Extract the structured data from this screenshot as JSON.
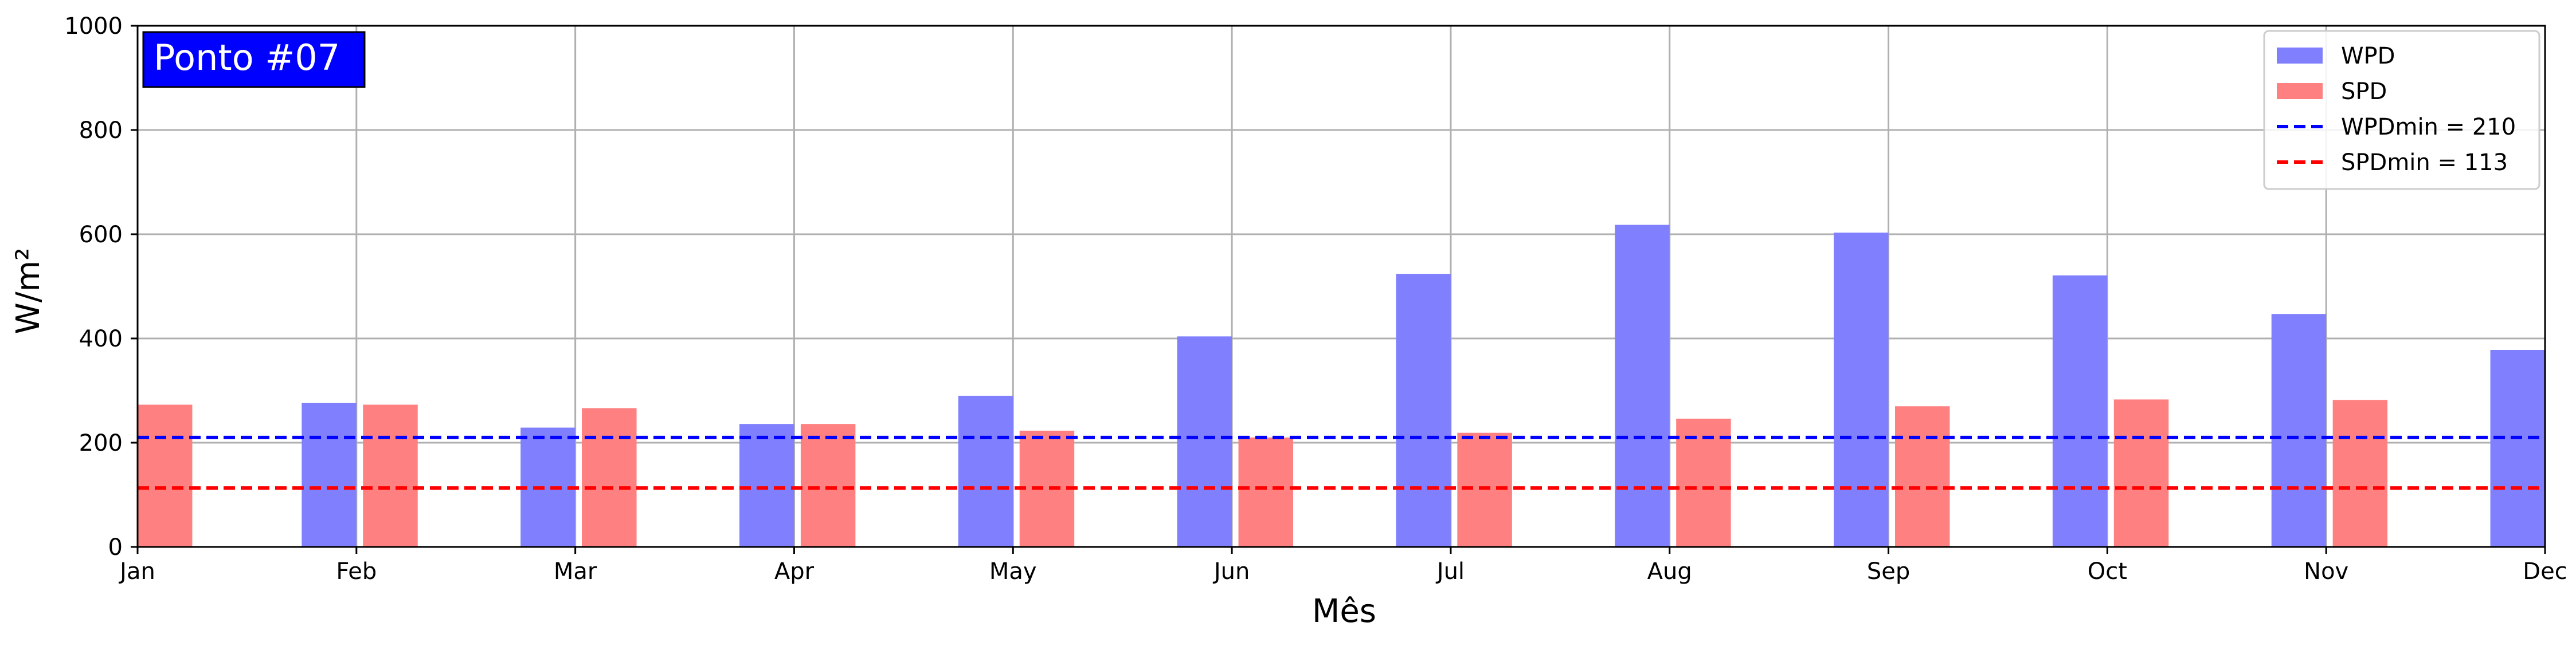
{
  "chart_data": {
    "type": "bar",
    "title_box": "Ponto #07",
    "xlabel": "Mês",
    "ylabel": "W/m²",
    "ylim": [
      0,
      1000
    ],
    "yticks": [
      0,
      200,
      400,
      600,
      800,
      1000
    ],
    "categories": [
      "Jan",
      "Feb",
      "Mar",
      "Apr",
      "May",
      "Jun",
      "Jul",
      "Aug",
      "Sep",
      "Oct",
      "Nov",
      "Dec"
    ],
    "grid": true,
    "legend_position": "top-right",
    "series": [
      {
        "name": "WPD",
        "color": "#8080ff",
        "values": [
          null,
          276,
          229,
          236,
          290,
          404,
          524,
          618,
          603,
          521,
          447,
          378
        ]
      },
      {
        "name": "SPD",
        "color": "#ff8080",
        "values": [
          273,
          273,
          266,
          236,
          223,
          210,
          219,
          246,
          270,
          283,
          282,
          null
        ]
      }
    ],
    "reference_lines": [
      {
        "label": "WPDmin = 210",
        "value": 210,
        "color": "#0000ff",
        "style": "dashed"
      },
      {
        "label": "SPDmin = 113",
        "value": 113,
        "color": "#ff0000",
        "style": "dashed"
      }
    ]
  }
}
